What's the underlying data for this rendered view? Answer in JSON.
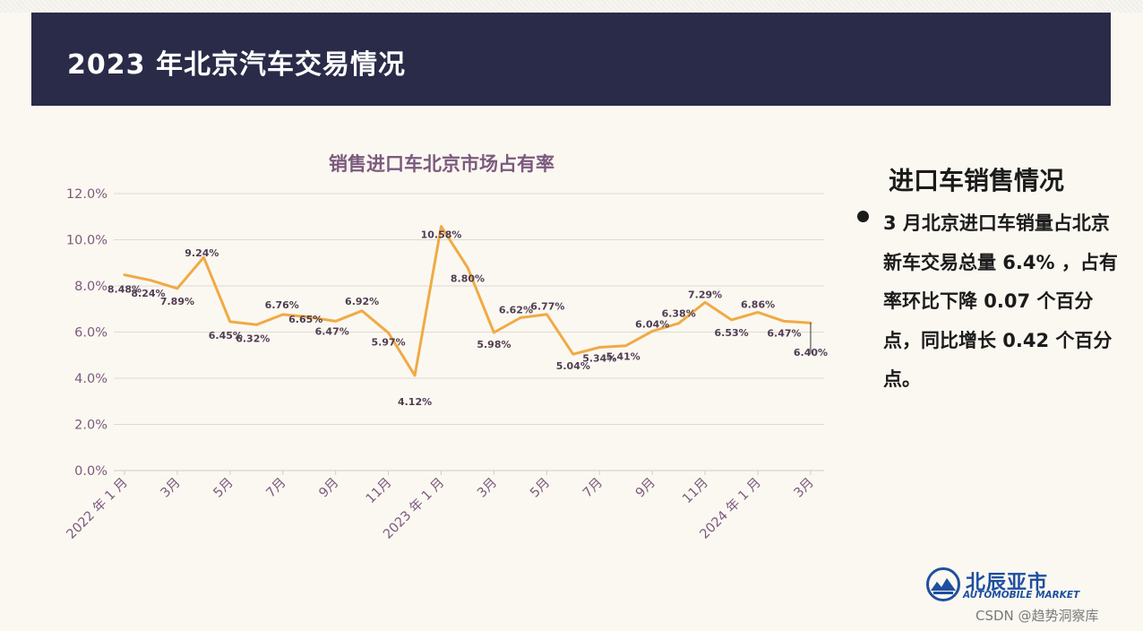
{
  "header": {
    "title": "2023 年北京汽车交易情况"
  },
  "chart_data": {
    "type": "line",
    "title": "销售进口车北京市场占有率",
    "y_ticks": [
      "12.0%",
      "10.0%",
      "8.0%",
      "6.0%",
      "4.0%",
      "2.0%",
      "0.0%"
    ],
    "ylim": [
      0,
      12
    ],
    "x_tick_labels": [
      "2022 年 1 月",
      "3月",
      "5月",
      "7月",
      "9月",
      "11月",
      "2023 年 1 月",
      "3月",
      "5月",
      "7月",
      "9月",
      "11月",
      "2024 年 1 月",
      "3月"
    ],
    "grid": true,
    "series": [
      {
        "values": [
          8.48,
          8.24,
          7.89,
          9.24,
          6.45,
          6.32,
          6.76,
          6.65,
          6.47,
          6.92,
          5.97,
          4.12,
          10.58,
          8.8,
          5.98,
          6.62,
          6.77,
          5.04,
          5.34,
          5.41,
          6.04,
          6.38,
          7.29,
          6.53,
          6.86,
          6.47,
          6.4
        ],
        "labels": [
          "8.48%",
          "8.24%",
          "7.89%",
          "9.24%",
          "6.45%",
          "6.32%",
          "6.76%",
          "6.65%",
          "6.47%",
          "6.92%",
          "5.97%",
          "4.12%",
          "10.58%",
          "8.80%",
          "5.98%",
          "6.62%",
          "6.77%",
          "5.04%",
          "5.34%",
          "5.41%",
          "6.04%",
          "6.38%",
          "7.29%",
          "6.53%",
          "6.86%",
          "6.47%",
          "6.40%"
        ],
        "color": "#f0aa45"
      }
    ],
    "colors": {
      "title": "#7b5a7e",
      "axis_text": "#7b5a7e",
      "data_label": "#4f3d52",
      "grid": "#dcdad4"
    }
  },
  "panel": {
    "title": "进口车销售情况",
    "bullet": "3 月北京进口车销量占北京新车交易总量 6.4% ，占有率环比下降 0.07 个百分点，同比增长 0.42 个百分点。"
  },
  "logo": {
    "name": "北辰亚市",
    "subtitle": "AUTOMOBILE MARKET"
  },
  "watermark": "CSDN @趋势洞察库"
}
